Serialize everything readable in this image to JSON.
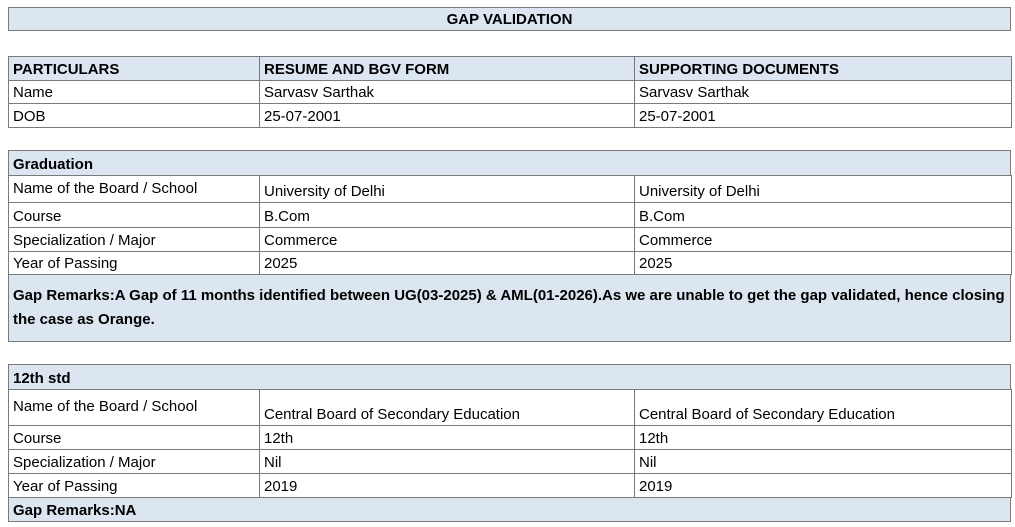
{
  "title": "GAP VALIDATION",
  "personal": {
    "header": [
      "PARTICULARS",
      "RESUME AND BGV FORM",
      "SUPPORTING DOCUMENTS"
    ],
    "rows": [
      [
        "Name",
        "Sarvasv Sarthak",
        "Sarvasv Sarthak"
      ],
      [
        "DOB",
        "25-07-2001",
        "25-07-2001"
      ]
    ]
  },
  "graduation": {
    "heading": "Graduation",
    "rows": [
      [
        "Name of the Board / School",
        "University of Delhi",
        "University of Delhi"
      ],
      [
        "Course",
        "B.Com",
        "B.Com"
      ],
      [
        "Specialization / Major",
        "Commerce",
        "Commerce"
      ],
      [
        "Year of Passing",
        "2025",
        "2025"
      ]
    ],
    "remarks": "Gap Remarks:A Gap of 11 months identified between UG(03-2025) & AML(01-2026).As we are unable to get the gap validated, hence closing the case as Orange."
  },
  "twelfth": {
    "heading": "12th std",
    "rows": [
      [
        "Name of the Board / School",
        "Central Board of Secondary Education",
        "Central Board of Secondary Education"
      ],
      [
        "Course",
        "12th",
        "12th"
      ],
      [
        "Specialization / Major",
        "Nil",
        "Nil"
      ],
      [
        "Year of Passing",
        "2019",
        "2019"
      ]
    ],
    "remarks": "Gap Remarks:NA"
  }
}
